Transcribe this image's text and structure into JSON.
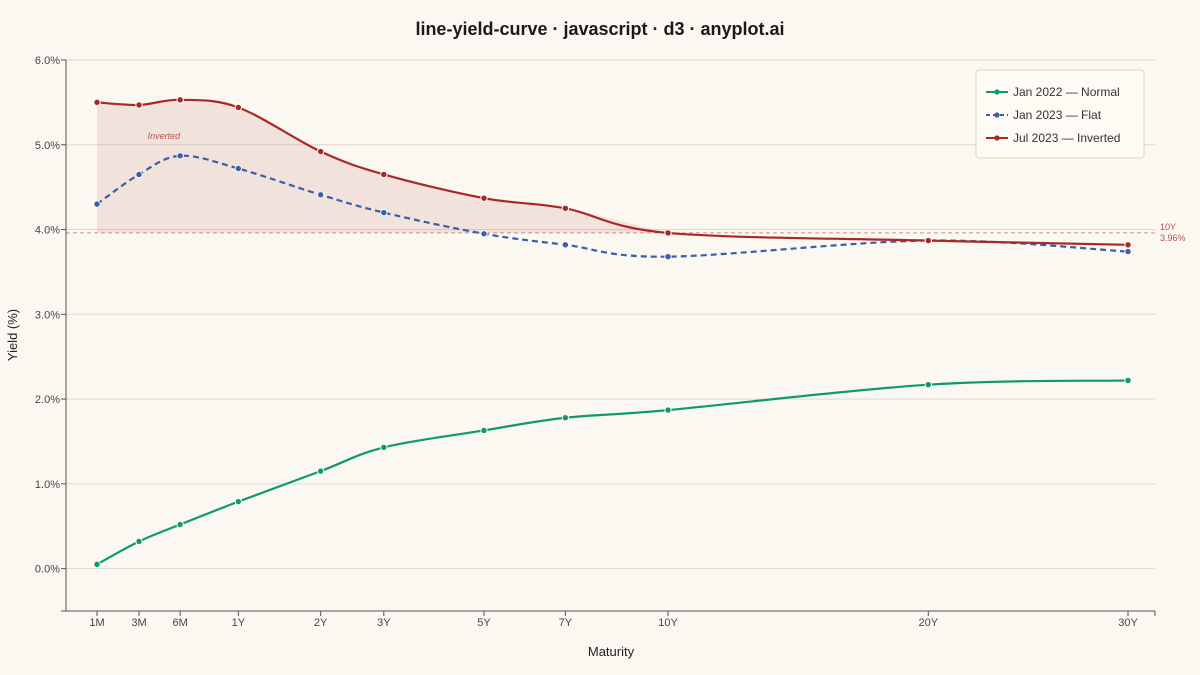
{
  "chart_data": {
    "type": "line",
    "title": "line-yield-curve · javascript · d3 · anyplot.ai",
    "xlabel": "Maturity",
    "ylabel": "Yield (%)",
    "categories": [
      "1M",
      "3M",
      "6M",
      "1Y",
      "2Y",
      "3Y",
      "5Y",
      "7Y",
      "10Y",
      "20Y",
      "30Y"
    ],
    "x_years": [
      0.0833,
      0.25,
      0.5,
      1,
      2,
      3,
      5,
      7,
      10,
      20,
      30
    ],
    "x_scale": "sqrt",
    "ylim": [
      -0.5,
      6.0
    ],
    "y_ticks": [
      0,
      1,
      2,
      3,
      4,
      5,
      6
    ],
    "y_tick_labels": [
      "0.0%",
      "1.0%",
      "2.0%",
      "3.0%",
      "4.0%",
      "5.0%",
      "6.0%"
    ],
    "grid": "horizontal",
    "legend_position": "top-right",
    "series": [
      {
        "name": "Jan 2022 — Normal",
        "color": "#0E9A6E",
        "dash": "solid",
        "values": [
          0.05,
          0.32,
          0.52,
          0.79,
          1.15,
          1.43,
          1.63,
          1.78,
          1.87,
          2.17,
          2.22
        ]
      },
      {
        "name": "Jan 2023 — Flat",
        "color": "#3A5FA8",
        "dash": "dashed",
        "values": [
          4.3,
          4.65,
          4.87,
          4.72,
          4.41,
          4.2,
          3.95,
          3.82,
          3.68,
          3.87,
          3.74
        ]
      },
      {
        "name": "Jul 2023 — Inverted",
        "color": "#A82828",
        "dash": "solid",
        "values": [
          5.5,
          5.47,
          5.53,
          5.44,
          4.92,
          4.65,
          4.37,
          4.25,
          3.96,
          3.87,
          3.82
        ]
      }
    ],
    "inversion_fill": {
      "color": "#A82828",
      "baseline_value": 3.96,
      "label": "Inverted",
      "label_at": 2
    },
    "reference_line": {
      "value": 3.96,
      "label_top": "10Y",
      "label_bottom": "3.96%",
      "color": "#D08A88"
    }
  }
}
